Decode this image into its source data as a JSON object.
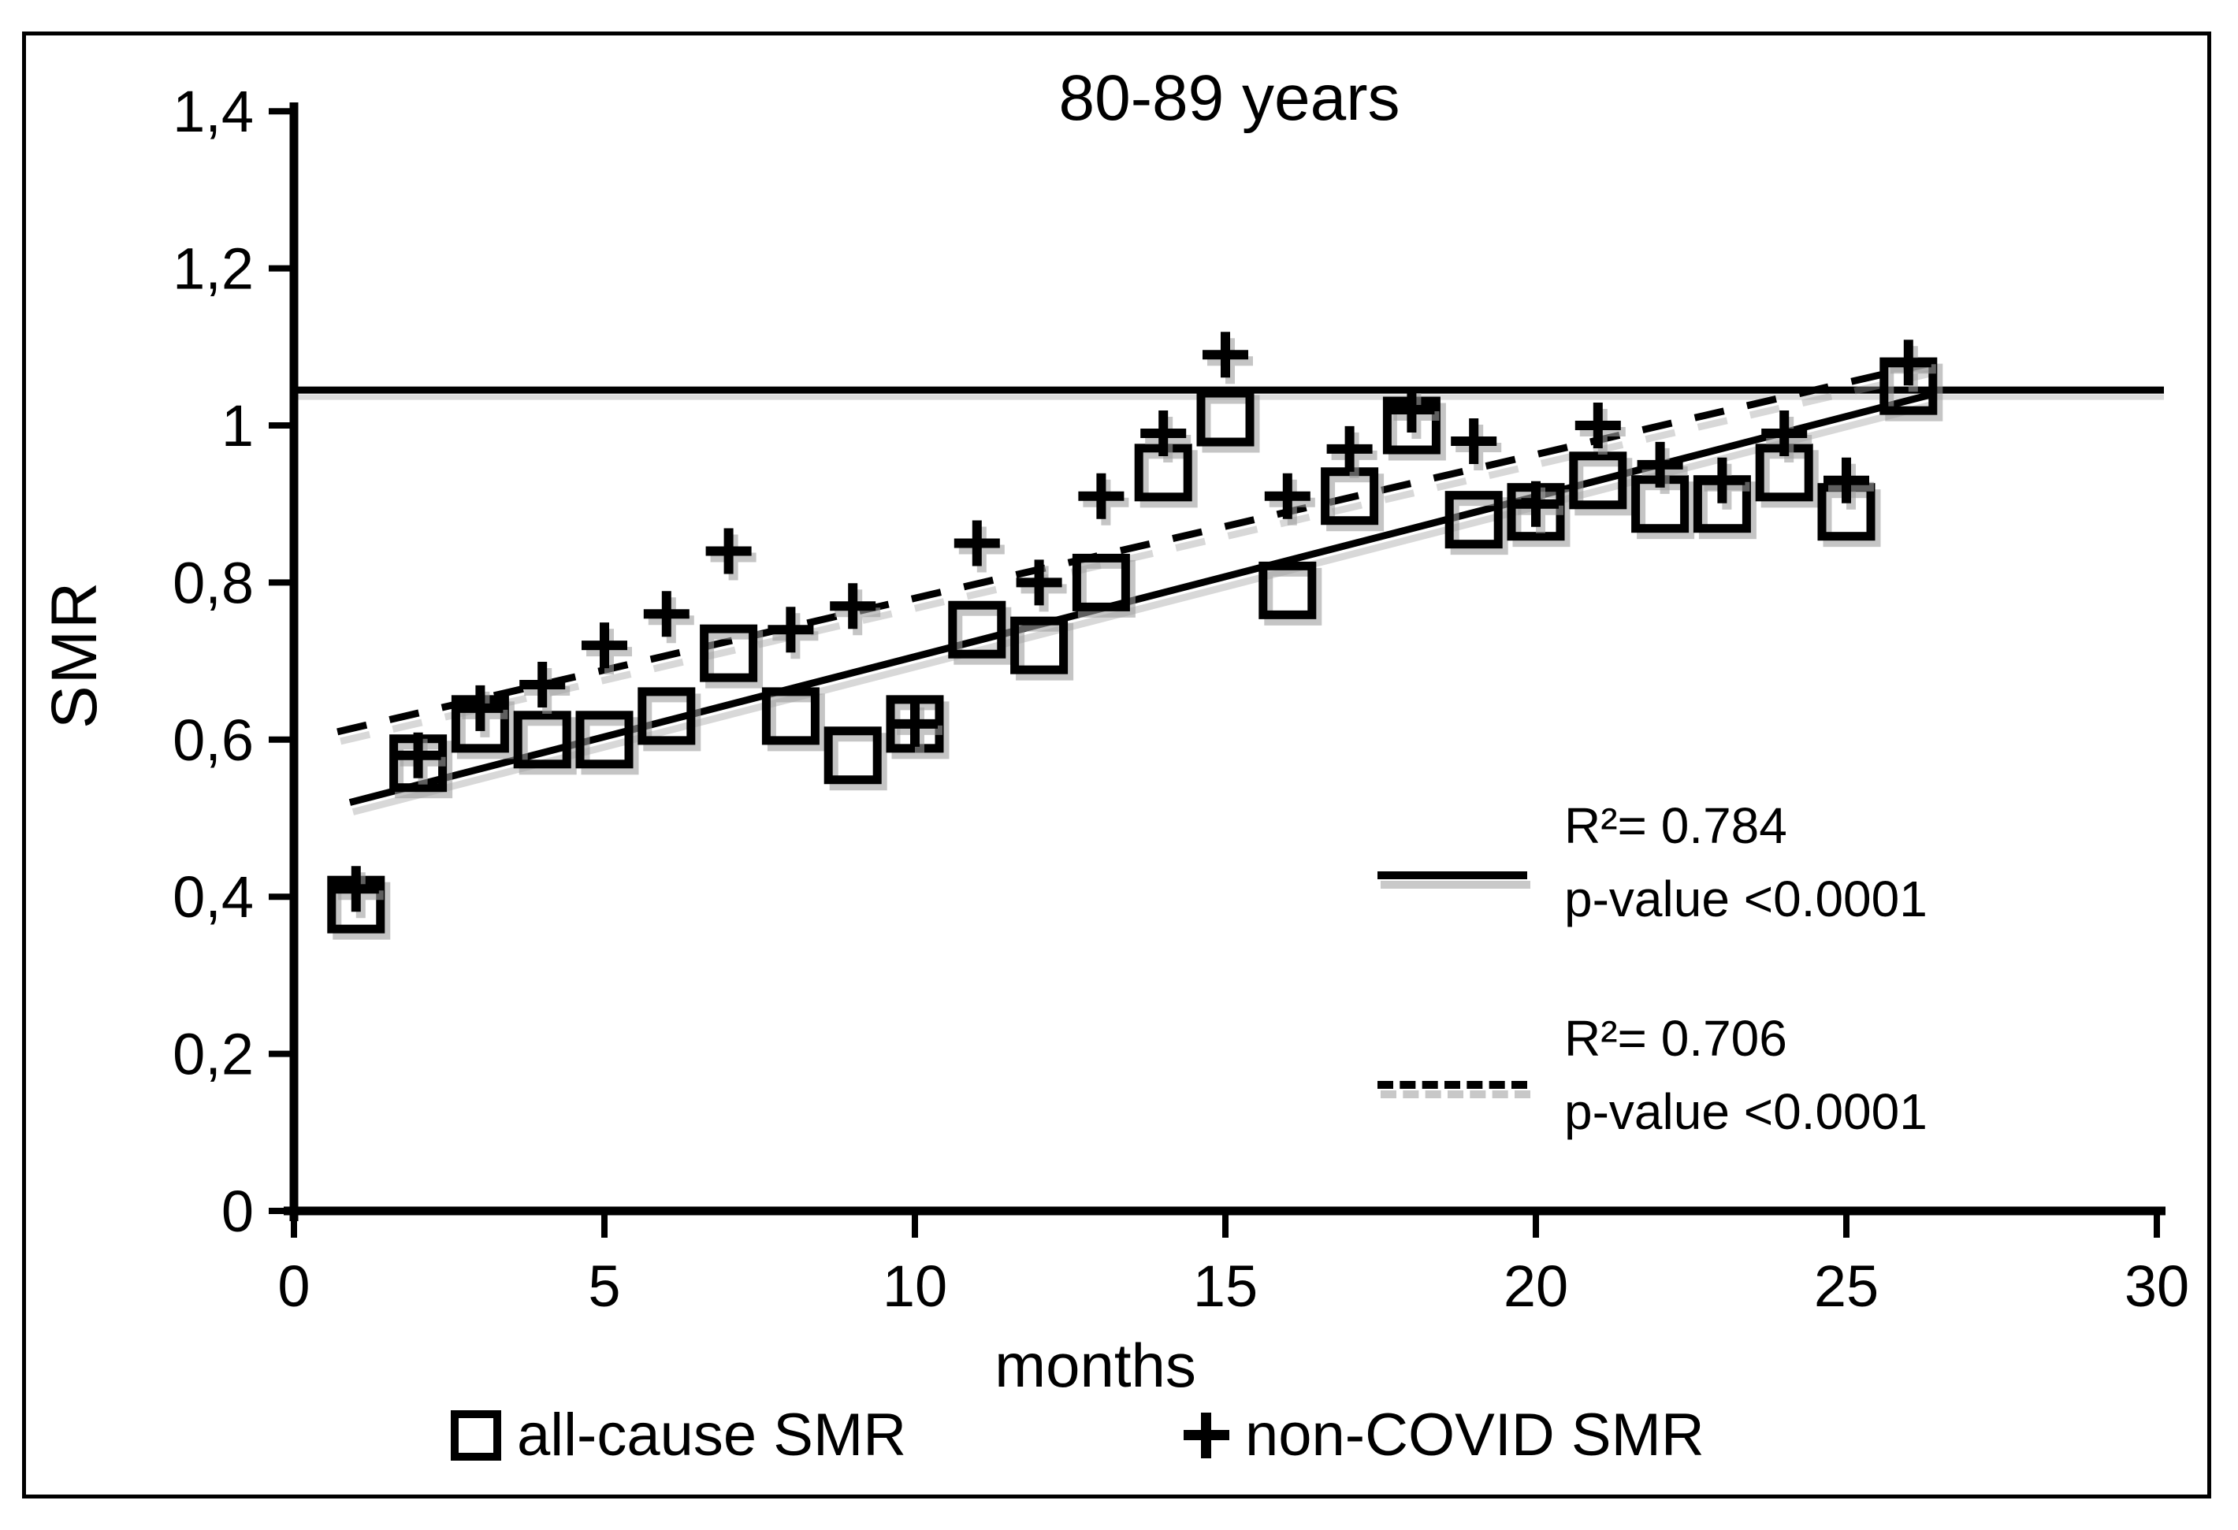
{
  "chart_data": {
    "type": "scatter",
    "title": "80-89 years",
    "xlabel": "months",
    "ylabel": "SMR",
    "xlim": [
      0,
      30
    ],
    "ylim": [
      0,
      1.4
    ],
    "grid": false,
    "legend_position": "bottom",
    "x_tick_values": [
      0,
      5,
      10,
      15,
      20,
      25,
      30
    ],
    "x_tick_labels": [
      "0",
      "5",
      "10",
      "15",
      "20",
      "25",
      "30"
    ],
    "y_tick_values": [
      0,
      0.2,
      0.4,
      0.6,
      0.8,
      1.0,
      1.2,
      1.4
    ],
    "y_tick_labels": [
      "0",
      "0,2",
      "0,4",
      "0,6",
      "0,8",
      "1",
      "1,2",
      "1,4"
    ],
    "reference_line_y": 1.045,
    "x": [
      1,
      2,
      3,
      4,
      5,
      6,
      7,
      8,
      9,
      10,
      11,
      12,
      13,
      14,
      15,
      16,
      17,
      18,
      19,
      20,
      21,
      22,
      23,
      24,
      25,
      26
    ],
    "series": [
      {
        "name": "all-cause SMR",
        "marker": "square",
        "values": [
          0.39,
          0.57,
          0.62,
          0.6,
          0.6,
          0.63,
          0.71,
          0.63,
          0.58,
          0.62,
          0.74,
          0.72,
          0.8,
          0.94,
          1.01,
          0.79,
          0.91,
          1.0,
          0.88,
          0.89,
          0.93,
          0.9,
          0.9,
          0.94,
          0.89,
          1.05
        ]
      },
      {
        "name": "non-COVID SMR",
        "marker": "plus",
        "values": [
          0.41,
          0.58,
          0.64,
          0.67,
          0.72,
          0.76,
          0.84,
          0.74,
          0.77,
          0.62,
          0.85,
          0.8,
          0.91,
          0.99,
          1.09,
          0.91,
          0.97,
          1.02,
          0.98,
          0.9,
          1.0,
          0.95,
          0.93,
          0.99,
          0.93,
          1.08
        ]
      }
    ],
    "trendlines": [
      {
        "series": "all-cause SMR",
        "style": "solid",
        "x1": 0.9,
        "y1": 0.52,
        "x2": 26.4,
        "y2": 1.04,
        "r2_label": "R²= 0.784",
        "p_label": "p-value <0.0001"
      },
      {
        "series": "non-COVID SMR",
        "style": "dashed",
        "x1": 0.7,
        "y1": 0.61,
        "x2": 26.4,
        "y2": 1.08,
        "r2_label": "R²= 0.706",
        "p_label": "p-value <0.0001"
      }
    ],
    "legend": [
      {
        "marker": "square",
        "label": "all-cause SMR"
      },
      {
        "marker": "plus",
        "label": "non-COVID SMR"
      }
    ],
    "colors": {
      "foreground": "#000000",
      "shadow": "#9e9e9e",
      "background": "#ffffff"
    }
  }
}
